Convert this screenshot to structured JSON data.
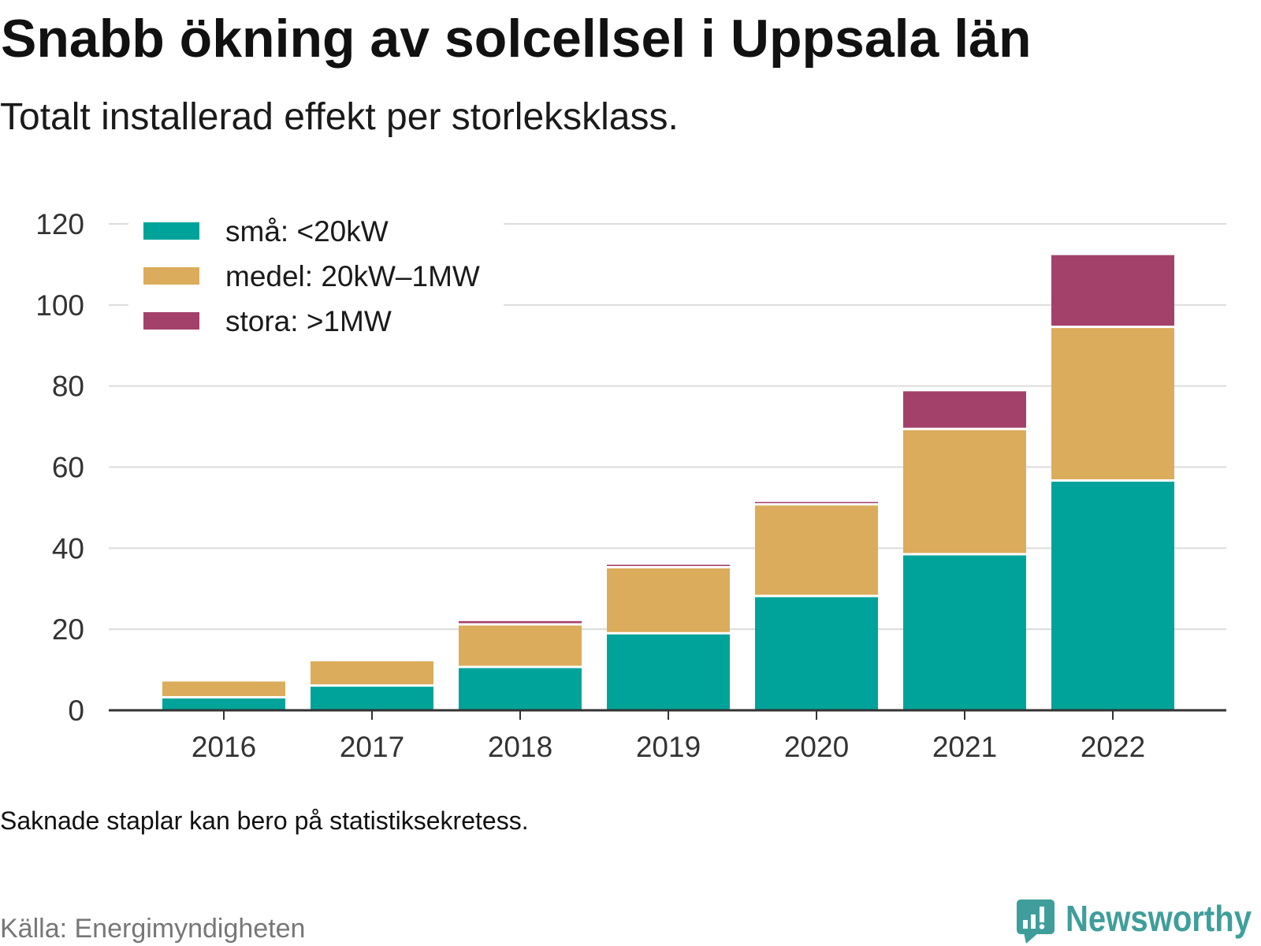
{
  "chart_data": {
    "type": "bar",
    "stacked": true,
    "title": "Snabb ökning av solcellsel i Uppsala län",
    "subtitle": "Totalt installerad effekt per storleksklass.",
    "note": "Saknade staplar kan bero på statistiksekretess.",
    "source": "Källa: Energimyndigheten",
    "categories": [
      "2016",
      "2017",
      "2018",
      "2019",
      "2020",
      "2021",
      "2022"
    ],
    "series": [
      {
        "name": "små: <20kW",
        "color": "#00A39A",
        "values": [
          3.2,
          6.1,
          10.7,
          19.0,
          28.2,
          38.5,
          56.7
        ]
      },
      {
        "name": "medel: 20kW–1MW",
        "color": "#DBAC5B",
        "values": [
          3.9,
          6.0,
          10.5,
          16.3,
          22.6,
          30.9,
          37.9
        ]
      },
      {
        "name": "stora: >1MW",
        "color": "#A3416B",
        "values": [
          null,
          null,
          0.8,
          0.6,
          0.6,
          9.3,
          17.7
        ]
      }
    ],
    "yticks": [
      0,
      20,
      40,
      60,
      80,
      100,
      120
    ],
    "ylim": [
      0,
      120
    ],
    "grid": true,
    "legend_position": "top-left"
  },
  "brand": {
    "name": "Newsworthy",
    "icon": "newsworthy-logo-icon",
    "color": "#3F9E9B"
  }
}
